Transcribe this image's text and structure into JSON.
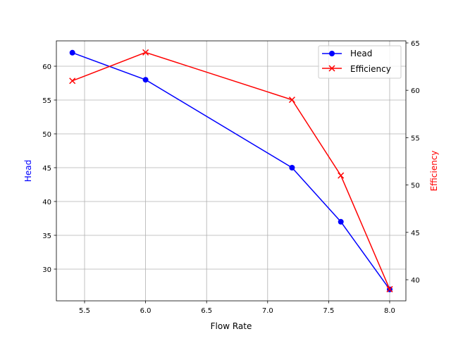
{
  "chart_data": {
    "type": "line",
    "title": "",
    "xlabel": "Flow Rate",
    "ylabel_left": "Head",
    "ylabel_right": "Efficiency",
    "xlim": [
      5.269,
      8.133
    ],
    "ylim_left": [
      25.31,
      63.75
    ],
    "ylim_right": [
      37.77,
      65.22
    ],
    "x_ticks": [
      5.5,
      6.0,
      6.5,
      7.0,
      7.5,
      8.0
    ],
    "y_ticks_left": [
      30,
      35,
      40,
      45,
      50,
      55,
      60
    ],
    "y_ticks_right": [
      40,
      45,
      50,
      55,
      60,
      65
    ],
    "grid": true,
    "legend_position": "top-right",
    "x": [
      5.4,
      6.0,
      7.2,
      7.6,
      8.0
    ],
    "series": [
      {
        "name": "Head",
        "axis": "left",
        "color": "#0000ff",
        "marker": "o",
        "values": [
          62,
          58,
          45,
          37,
          27
        ]
      },
      {
        "name": "Efficiency",
        "axis": "right",
        "color": "#ff0000",
        "marker": "x",
        "values": [
          61,
          64,
          59,
          51,
          39
        ]
      }
    ]
  }
}
